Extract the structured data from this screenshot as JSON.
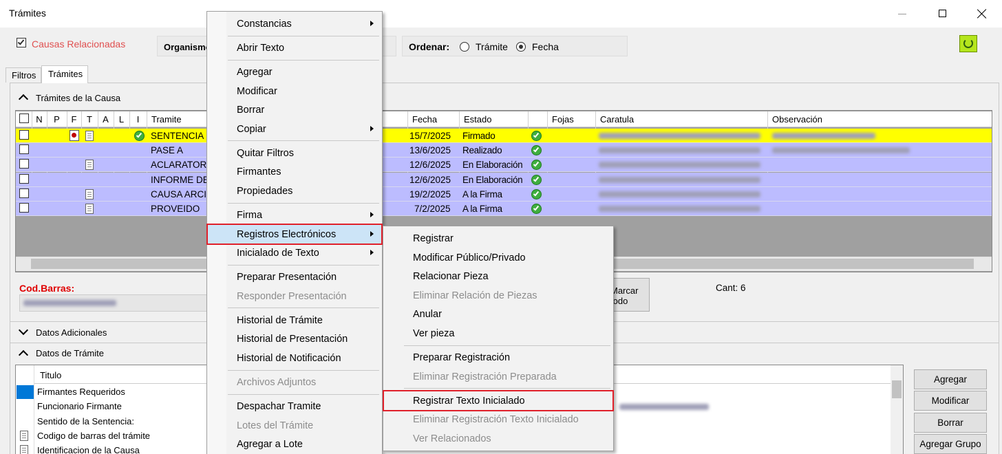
{
  "window": {
    "title": "Trámites"
  },
  "toolbar": {
    "related_causes": "Causas Relacionadas",
    "related_checked": true,
    "organism_label": "Organismo",
    "order_label": "Ordenar:",
    "order_options": [
      "Trámite",
      "Fecha"
    ],
    "order_selected": 1
  },
  "tabs": [
    "Filtros",
    "Trámites"
  ],
  "active_tab": 1,
  "tramites_section": {
    "title": "Trámites de la Causa",
    "columns": [
      "N",
      "P",
      "F",
      "T",
      "A",
      "L",
      "I",
      "Tramite",
      "Fecha",
      "Estado",
      "Fojas",
      "Caratula",
      "Observación"
    ],
    "rows": [
      {
        "tramite": "SENTENCIA",
        "fecha": "15/7/2025",
        "estado": "Firmado",
        "t_icon": true,
        "selected": true
      },
      {
        "tramite": "PASE A",
        "fecha": "13/6/2025",
        "estado": "Realizado",
        "t_icon": false,
        "selected": false
      },
      {
        "tramite": "ACLARATOR",
        "fecha": "12/6/2025",
        "estado": "En Elaboración",
        "t_icon": true,
        "selected": false
      },
      {
        "tramite": "INFORME DE",
        "fecha": "12/6/2025",
        "estado": "En Elaboración",
        "t_icon": false,
        "selected": false
      },
      {
        "tramite": "CAUSA ARCI",
        "fecha": "19/2/2025",
        "estado": "A la Firma",
        "t_icon": true,
        "selected": false
      },
      {
        "tramite": "PROVEIDO",
        "fecha": "7/2/2025",
        "estado": "A la Firma",
        "t_icon": true,
        "selected": false
      }
    ]
  },
  "barcode": {
    "label": "Cod.Barras:",
    "mark_all": "Marcar todo",
    "count": "Cant: 6"
  },
  "datos_adicionales": {
    "title": "Datos Adicionales"
  },
  "datos_tramite": {
    "title": "Datos de Trámite",
    "column": "Titulo",
    "rows": [
      "Firmantes Requeridos",
      "Funcionario Firmante",
      "Sentido de la Sentencia:",
      "Codigo de barras del trámite",
      "Identificacion de la Causa"
    ],
    "buttons": [
      "Agregar",
      "Modificar",
      "Borrar",
      "Agregar  Grupo"
    ]
  },
  "context_menu": {
    "groups": [
      [
        {
          "label": "Constancias",
          "submenu": true
        }
      ],
      [
        {
          "label": "Abrir Texto"
        }
      ],
      [
        {
          "label": "Agregar"
        },
        {
          "label": "Modificar"
        },
        {
          "label": "Borrar"
        },
        {
          "label": "Copiar",
          "submenu": true
        }
      ],
      [
        {
          "label": "Quitar Filtros"
        },
        {
          "label": "Firmantes"
        },
        {
          "label": "Propiedades"
        }
      ],
      [
        {
          "label": "Firma",
          "submenu": true
        },
        {
          "label": "Registros Electrónicos",
          "submenu": true,
          "highlighted": true
        },
        {
          "label": "Inicialado de Texto",
          "submenu": true
        }
      ],
      [
        {
          "label": "Preparar Presentación"
        },
        {
          "label": "Responder Presentación",
          "disabled": true
        }
      ],
      [
        {
          "label": "Historial de Trámite"
        },
        {
          "label": "Historial de Presentación"
        },
        {
          "label": "Historial de Notificación"
        }
      ],
      [
        {
          "label": "Archivos Adjuntos",
          "disabled": true
        }
      ],
      [
        {
          "label": "Despachar Tramite"
        },
        {
          "label": "Lotes del Trámite",
          "disabled": true
        },
        {
          "label": "Agregar a Lote"
        }
      ]
    ]
  },
  "submenu": {
    "groups": [
      [
        {
          "label": "Registrar"
        },
        {
          "label": "Modificar Público/Privado"
        },
        {
          "label": "Relacionar Pieza"
        },
        {
          "label": "Eliminar Relación de Piezas",
          "disabled": true
        },
        {
          "label": "Anular"
        },
        {
          "label": "Ver pieza"
        }
      ],
      [
        {
          "label": "Preparar Registración"
        },
        {
          "label": "Eliminar Registración Preparada",
          "disabled": true
        }
      ],
      [
        {
          "label": "Registrar Texto Inicialado",
          "outlined": true
        },
        {
          "label": "Eliminar Registración Texto Inicialado",
          "disabled": true
        },
        {
          "label": "Ver Relacionados",
          "disabled": true
        }
      ]
    ]
  }
}
